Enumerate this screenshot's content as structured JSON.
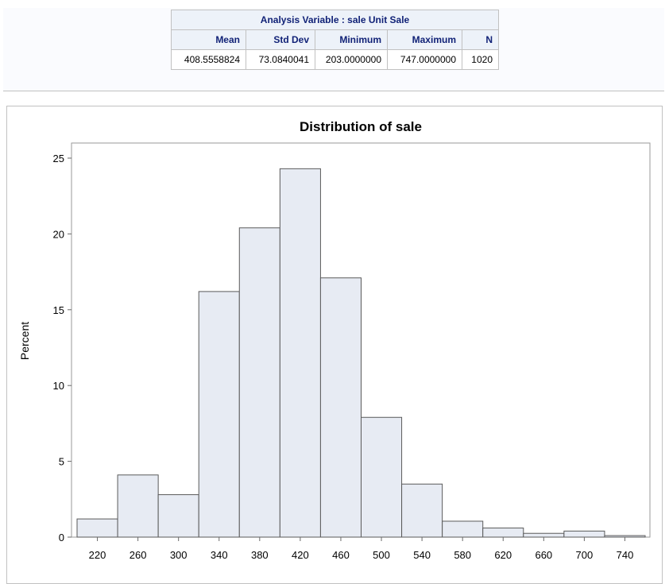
{
  "summary_table": {
    "caption": "Analysis Variable : sale Unit Sale",
    "headers": [
      "Mean",
      "Std Dev",
      "Minimum",
      "Maximum",
      "N"
    ],
    "values": [
      "408.5558824",
      "73.0840041",
      "203.0000000",
      "747.0000000",
      "1020"
    ]
  },
  "chart_data": {
    "type": "bar",
    "title": "Distribution of sale",
    "xlabel": "",
    "ylabel": "Percent",
    "bin_width": 40,
    "categories": [
      "220",
      "260",
      "300",
      "340",
      "380",
      "420",
      "460",
      "500",
      "540",
      "580",
      "620",
      "660",
      "700",
      "740"
    ],
    "values": [
      1.2,
      4.1,
      2.8,
      16.2,
      20.4,
      24.3,
      17.1,
      7.9,
      3.5,
      1.05,
      0.6,
      0.25,
      0.4,
      0.1
    ],
    "ylim": [
      0,
      25
    ],
    "yticks": [
      0,
      5,
      10,
      15,
      20,
      25
    ],
    "xticks": [
      220,
      260,
      300,
      340,
      380,
      420,
      460,
      500,
      540,
      580,
      620,
      660,
      700,
      740
    ],
    "bar_color": "#e7ebf3",
    "bar_edge_color": "#5a5a5a",
    "grid": false,
    "legend": "none"
  }
}
